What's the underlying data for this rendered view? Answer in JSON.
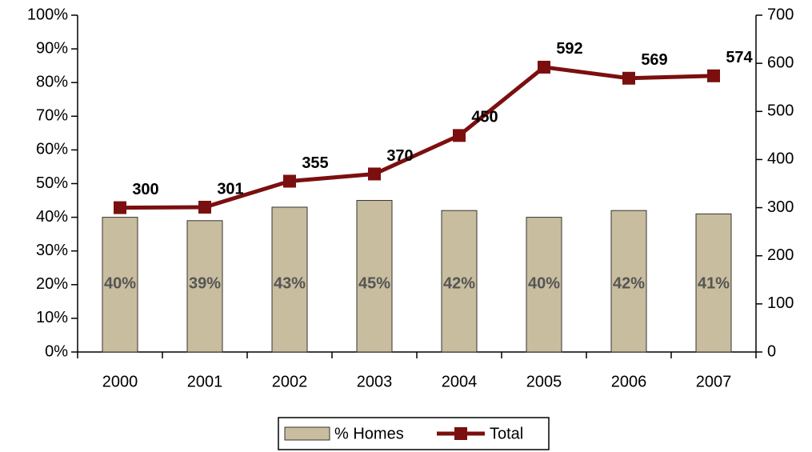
{
  "chart_data": {
    "type": "combo",
    "categories": [
      "2000",
      "2001",
      "2002",
      "2003",
      "2004",
      "2005",
      "2006",
      "2007"
    ],
    "series": [
      {
        "name": "% Homes",
        "type": "bar",
        "color": "#c8bd9e",
        "axis": "y",
        "values": [
          40,
          39,
          43,
          45,
          42,
          40,
          42,
          41
        ],
        "value_labels": [
          "40%",
          "39%",
          "43%",
          "45%",
          "42%",
          "40%",
          "42%",
          "41%"
        ]
      },
      {
        "name": "Total",
        "type": "line",
        "color": "#7b0f0f",
        "axis": "y2",
        "values": [
          300,
          301,
          355,
          370,
          450,
          592,
          569,
          574
        ]
      }
    ],
    "ylim": [
      0,
      100
    ],
    "yticks": [
      {
        "value": 0,
        "label": "0%"
      },
      {
        "value": 10,
        "label": "10%"
      },
      {
        "value": 20,
        "label": "20%"
      },
      {
        "value": 30,
        "label": "30%"
      },
      {
        "value": 40,
        "label": "40%"
      },
      {
        "value": 50,
        "label": "50%"
      },
      {
        "value": 60,
        "label": "60%"
      },
      {
        "value": 70,
        "label": "70%"
      },
      {
        "value": 80,
        "label": "80%"
      },
      {
        "value": 90,
        "label": "90%"
      },
      {
        "value": 100,
        "label": "100%"
      }
    ],
    "y2lim": [
      0,
      700
    ],
    "y2ticks": [
      0,
      100,
      200,
      300,
      400,
      500,
      600,
      700
    ],
    "grid": false,
    "legend": "bottom"
  }
}
